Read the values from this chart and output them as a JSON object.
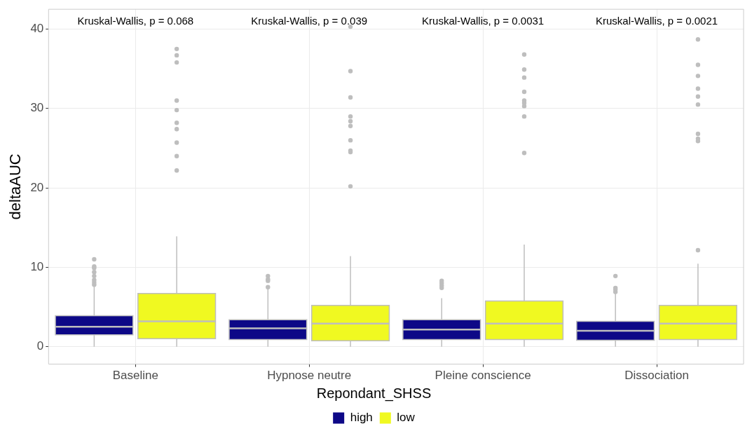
{
  "chart_data": {
    "type": "box",
    "ylabel": "deltaAUC",
    "legend_title": "Repondant_SHSS",
    "legend": "bottom",
    "grid": true,
    "categories": [
      "Baseline",
      "Hypnose neutre",
      "Pleine conscience",
      "Dissociation"
    ],
    "ylim": [
      -2.2,
      42.5
    ],
    "yticks": [
      0,
      10,
      20,
      30,
      40
    ],
    "series": [
      {
        "name": "high",
        "color": "#0d0887",
        "boxes": [
          {
            "low": 0,
            "q1": 1.5,
            "median": 2.5,
            "q3": 3.9,
            "high": 7.6,
            "outliers": [
              11.0,
              10.1,
              9.9,
              9.4,
              8.9,
              8.4,
              8.1,
              7.8
            ]
          },
          {
            "low": 0,
            "q1": 0.9,
            "median": 2.3,
            "q3": 3.4,
            "high": 7.3,
            "outliers": [
              8.9,
              8.5,
              8.3,
              7.5
            ]
          },
          {
            "low": 0,
            "q1": 0.9,
            "median": 2.15,
            "q3": 3.4,
            "high": 6.1,
            "outliers": [
              8.3,
              8.0,
              7.7,
              7.4
            ]
          },
          {
            "low": 0,
            "q1": 0.8,
            "median": 2.0,
            "q3": 3.2,
            "high": 6.7,
            "outliers": [
              8.9,
              7.4,
              7.2,
              6.9
            ]
          }
        ]
      },
      {
        "name": "low",
        "color": "#f0f921",
        "boxes": [
          {
            "low": 0,
            "q1": 1.0,
            "median": 3.2,
            "q3": 6.7,
            "high": 13.9,
            "outliers": [
              37.5,
              36.7,
              35.8,
              31.0,
              29.8,
              28.2,
              27.4,
              25.7,
              24.0,
              22.2
            ]
          },
          {
            "low": 0,
            "q1": 0.75,
            "median": 2.9,
            "q3": 5.2,
            "high": 11.4,
            "outliers": [
              40.3,
              34.7,
              31.4,
              29.0,
              28.4,
              27.8,
              26.0,
              24.7,
              24.5,
              20.2
            ]
          },
          {
            "low": 0,
            "q1": 0.9,
            "median": 2.9,
            "q3": 5.75,
            "high": 12.85,
            "outliers": [
              36.8,
              34.9,
              33.9,
              32.1,
              31.0,
              30.7,
              30.3,
              29.0,
              24.4
            ]
          },
          {
            "low": 0,
            "q1": 0.9,
            "median": 2.9,
            "q3": 5.2,
            "high": 10.45,
            "outliers": [
              38.7,
              35.5,
              34.1,
              32.5,
              31.5,
              30.5,
              26.8,
              26.2,
              25.9,
              12.15
            ]
          }
        ]
      }
    ],
    "annotations": [
      "Kruskal-Wallis, p = 0.068",
      "Kruskal-Wallis, p = 0.039",
      "Kruskal-Wallis, p = 0.0031",
      "Kruskal-Wallis, p = 0.0021"
    ]
  }
}
